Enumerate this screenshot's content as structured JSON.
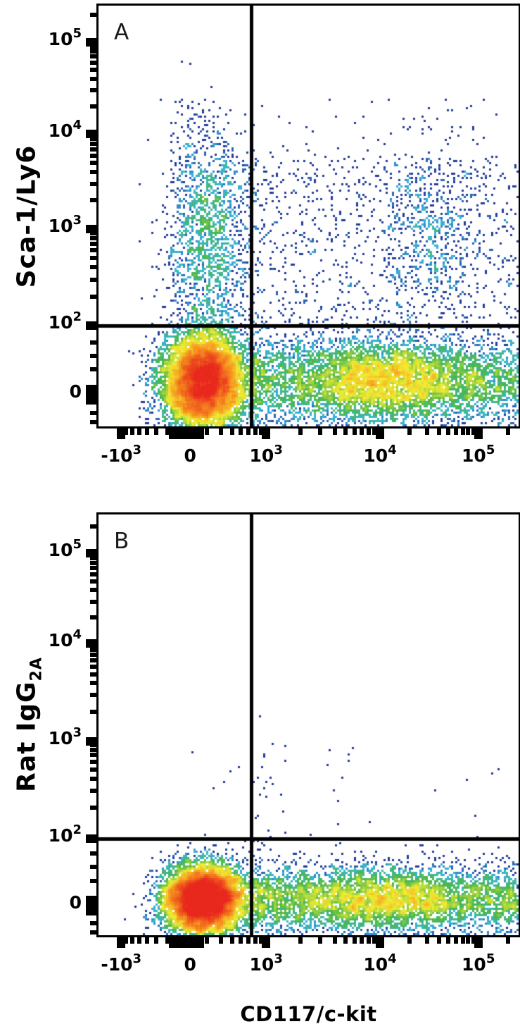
{
  "figure": {
    "x_axis_title": "CD117/c-kit",
    "panel_b": {
      "ylabel_main": "Rat IgG",
      "ylabel_sub": "2A"
    }
  },
  "chart_data": [
    {
      "type": "scatter",
      "subtype": "flow-cytometry-pseudocolor-density",
      "panel_label": "A",
      "xlabel": "CD117/c-kit",
      "ylabel": "Sca-1/Ly6",
      "x_scale": "biexponential",
      "y_scale": "biexponential",
      "x_axis": {
        "major_ticks": [
          {
            "base": "-10",
            "exp": "3",
            "frac": 0.054
          },
          {
            "base": "0",
            "exp": null,
            "frac": 0.218,
            "wide": true
          },
          {
            "base": "10",
            "exp": "3",
            "frac": 0.399
          },
          {
            "base": "10",
            "exp": "4",
            "frac": 0.67
          },
          {
            "base": "10",
            "exp": "5",
            "frac": 0.904
          }
        ],
        "minor_fracs": [
          0.066,
          0.081,
          0.097,
          0.116,
          0.137,
          0.164,
          0.198,
          0.258,
          0.292,
          0.318,
          0.339,
          0.357,
          0.373,
          0.387,
          0.481,
          0.528,
          0.562,
          0.588,
          0.61,
          0.627,
          0.643,
          0.657,
          0.74,
          0.782,
          0.811,
          0.833,
          0.851,
          0.867,
          0.88,
          0.893,
          0.975
        ]
      },
      "y_axis": {
        "major_ticks": [
          {
            "base": "10",
            "exp": "5",
            "frac": 0.087
          },
          {
            "base": "10",
            "exp": "4",
            "frac": 0.305
          },
          {
            "base": "10",
            "exp": "3",
            "frac": 0.531
          },
          {
            "base": "10",
            "exp": "2",
            "frac": 0.76
          },
          {
            "base": "0",
            "exp": null,
            "frac": 0.925,
            "wide": true
          }
        ],
        "minor_fracs": [
          0.022,
          0.098,
          0.109,
          0.121,
          0.136,
          0.153,
          0.174,
          0.201,
          0.239,
          0.316,
          0.328,
          0.341,
          0.356,
          0.374,
          0.395,
          0.423,
          0.463,
          0.541,
          0.553,
          0.566,
          0.582,
          0.6,
          0.622,
          0.651,
          0.691,
          0.8,
          0.832,
          0.865,
          0.968,
          0.99
        ]
      },
      "quadrant_gate": {
        "x_frac": 0.364,
        "y_frac": 0.76,
        "y_value": "1e2",
        "x_value_approx": "6e2"
      },
      "populations": [
        {
          "name": "double-negative-core",
          "type": "gaussian",
          "cx": 0.252,
          "cy": 0.893,
          "sx": 0.05,
          "sy": 0.058,
          "n": 9000
        },
        {
          "name": "cd117-positive-band",
          "type": "band",
          "x0": 0.36,
          "x1": 0.998,
          "cy": 0.893,
          "sy": 0.055,
          "n": 4200
        },
        {
          "name": "cd117-bright-cluster",
          "type": "gaussian",
          "cx": 0.68,
          "cy": 0.89,
          "sx": 0.1,
          "sy": 0.048,
          "n": 2600
        },
        {
          "name": "sca1-positive-column",
          "type": "gaussian",
          "cx": 0.258,
          "cy": 0.555,
          "sx": 0.048,
          "sy": 0.135,
          "n": 1600
        },
        {
          "name": "sca1-cd117-double-positive",
          "type": "gaussian",
          "cx": 0.79,
          "cy": 0.54,
          "sx": 0.055,
          "sy": 0.095,
          "n": 480
        },
        {
          "name": "mid-scatter",
          "type": "uniform",
          "x0": 0.32,
          "x1": 1.0,
          "y0": 0.36,
          "y1": 0.76,
          "n": 850
        },
        {
          "name": "sparse-upper",
          "type": "uniform",
          "x0": 0.18,
          "x1": 0.95,
          "y0": 0.22,
          "y1": 0.45,
          "n": 120
        }
      ],
      "colormap": {
        "stops": [
          {
            "t": 0,
            "color": "#233d9b"
          },
          {
            "t": 0.25,
            "color": "#233d9b"
          },
          {
            "t": 0.4,
            "color": "#3ab6e0"
          },
          {
            "t": 0.55,
            "color": "#47b64c"
          },
          {
            "t": 0.7,
            "color": "#f2ed33"
          },
          {
            "t": 0.84,
            "color": "#f6921e"
          },
          {
            "t": 1,
            "color": "#e8271d"
          }
        ]
      },
      "density_cap": 100,
      "seed": 42
    },
    {
      "type": "scatter",
      "subtype": "flow-cytometry-pseudocolor-density",
      "panel_label": "B",
      "xlabel": "CD117/c-kit",
      "ylabel": "Rat IgG2A",
      "x_scale": "biexponential",
      "y_scale": "biexponential",
      "x_axis": {
        "major_ticks": [
          {
            "base": "-10",
            "exp": "3",
            "frac": 0.054
          },
          {
            "base": "0",
            "exp": null,
            "frac": 0.218,
            "wide": true
          },
          {
            "base": "10",
            "exp": "3",
            "frac": 0.399
          },
          {
            "base": "10",
            "exp": "4",
            "frac": 0.67
          },
          {
            "base": "10",
            "exp": "5",
            "frac": 0.904
          }
        ],
        "minor_fracs": [
          0.066,
          0.081,
          0.097,
          0.116,
          0.137,
          0.164,
          0.198,
          0.258,
          0.292,
          0.318,
          0.339,
          0.357,
          0.373,
          0.387,
          0.481,
          0.528,
          0.562,
          0.588,
          0.61,
          0.627,
          0.643,
          0.657,
          0.74,
          0.782,
          0.811,
          0.833,
          0.851,
          0.867,
          0.88,
          0.893,
          0.975
        ]
      },
      "y_axis": {
        "major_ticks": [
          {
            "base": "10",
            "exp": "5",
            "frac": 0.092
          },
          {
            "base": "10",
            "exp": "4",
            "frac": 0.307
          },
          {
            "base": "10",
            "exp": "3",
            "frac": 0.539
          },
          {
            "base": "10",
            "exp": "2",
            "frac": 0.77
          },
          {
            "base": "0",
            "exp": null,
            "frac": 0.93,
            "wide": true
          }
        ],
        "minor_fracs": [
          0.028,
          0.104,
          0.115,
          0.127,
          0.142,
          0.159,
          0.18,
          0.207,
          0.245,
          0.322,
          0.334,
          0.347,
          0.362,
          0.38,
          0.401,
          0.429,
          0.469,
          0.547,
          0.559,
          0.572,
          0.588,
          0.606,
          0.628,
          0.657,
          0.697,
          0.806,
          0.838,
          0.871,
          0.972,
          0.993
        ]
      },
      "quadrant_gate": {
        "x_frac": 0.364,
        "y_frac": 0.77,
        "y_value": "1e2",
        "x_value_approx": "6e2"
      },
      "populations": [
        {
          "name": "negative-core",
          "type": "gaussian",
          "cx": 0.252,
          "cy": 0.916,
          "sx": 0.048,
          "sy": 0.04,
          "n": 9000
        },
        {
          "name": "cd117-positive-band",
          "type": "band",
          "x0": 0.36,
          "x1": 0.998,
          "cy": 0.915,
          "sy": 0.042,
          "n": 3800
        },
        {
          "name": "cd117-bright-cluster",
          "type": "gaussian",
          "cx": 0.67,
          "cy": 0.915,
          "sx": 0.11,
          "sy": 0.035,
          "n": 1600
        },
        {
          "name": "rare-above-gate",
          "type": "uniform",
          "x0": 0.22,
          "x1": 0.62,
          "y0": 0.55,
          "y1": 0.768,
          "n": 26
        },
        {
          "name": "wisp-above-gate",
          "type": "gaussian",
          "cx": 0.4,
          "cy": 0.6,
          "sx": 0.025,
          "sy": 0.055,
          "n": 12
        },
        {
          "name": "sparse-right-above-gate",
          "type": "uniform",
          "x0": 0.62,
          "x1": 0.99,
          "y0": 0.6,
          "y1": 0.768,
          "n": 6
        }
      ],
      "colormap": {
        "stops": [
          {
            "t": 0,
            "color": "#233d9b"
          },
          {
            "t": 0.25,
            "color": "#233d9b"
          },
          {
            "t": 0.4,
            "color": "#3ab6e0"
          },
          {
            "t": 0.55,
            "color": "#47b64c"
          },
          {
            "t": 0.7,
            "color": "#f2ed33"
          },
          {
            "t": 0.84,
            "color": "#f6921e"
          },
          {
            "t": 1,
            "color": "#e8271d"
          }
        ]
      },
      "density_cap": 100,
      "seed": 7
    }
  ]
}
